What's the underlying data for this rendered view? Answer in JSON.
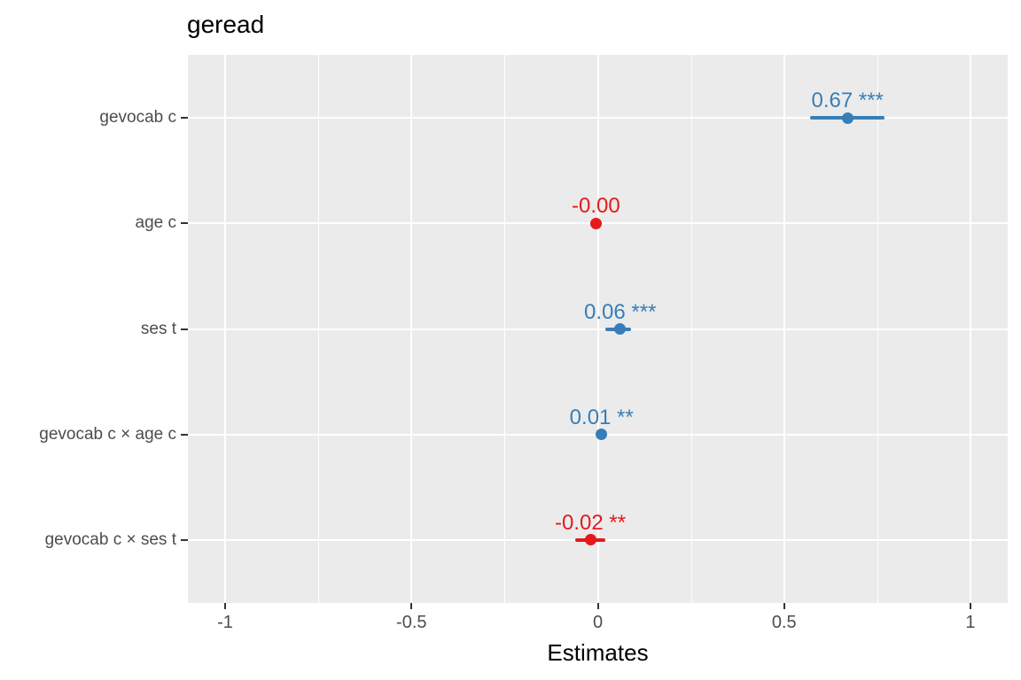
{
  "chart_data": {
    "type": "scatter",
    "subtype": "forest-coefficient-plot",
    "title": "geread",
    "xlabel": "Estimates",
    "ylabel": "",
    "xlim": [
      -1.1,
      1.1
    ],
    "x_major_ticks": [
      -1,
      -0.5,
      0,
      0.5,
      1
    ],
    "x_major_tick_labels": [
      "-1",
      "-0.5",
      "0",
      "0.5",
      "1"
    ],
    "x_minor_ticks": [
      -0.75,
      -0.25,
      0.25,
      0.75
    ],
    "grid": "vertical major+minor white lines, horizontal major white line per term, gray panel",
    "legend_position": "none",
    "terms": [
      {
        "label": "gevocab c",
        "estimate": 0.67,
        "ci_low": 0.57,
        "ci_high": 0.77,
        "value_label": "0.67 ***",
        "significance": "***",
        "color": "#377EB8"
      },
      {
        "label": "age c",
        "estimate": -0.005,
        "ci_low": -0.02,
        "ci_high": 0.01,
        "value_label": "-0.00",
        "significance": "",
        "color": "#E41A1C"
      },
      {
        "label": "ses t",
        "estimate": 0.06,
        "ci_low": 0.02,
        "ci_high": 0.09,
        "value_label": "0.06 ***",
        "significance": "***",
        "color": "#377EB8"
      },
      {
        "label": "gevocab c × age c",
        "estimate": 0.01,
        "ci_low": 0.0,
        "ci_high": 0.02,
        "value_label": "0.01 **",
        "significance": "**",
        "color": "#377EB8"
      },
      {
        "label": "gevocab c × ses t",
        "estimate": -0.02,
        "ci_low": -0.06,
        "ci_high": 0.02,
        "value_label": "-0.02 **",
        "significance": "**",
        "color": "#E41A1C"
      }
    ],
    "colors": {
      "positive": "#377EB8",
      "negative": "#E41A1C",
      "panel_background": "#EBEBEB",
      "grid": "#FFFFFF",
      "tick_label": "#4D4D4D",
      "tick_mark": "#333333",
      "title": "#000000"
    }
  }
}
